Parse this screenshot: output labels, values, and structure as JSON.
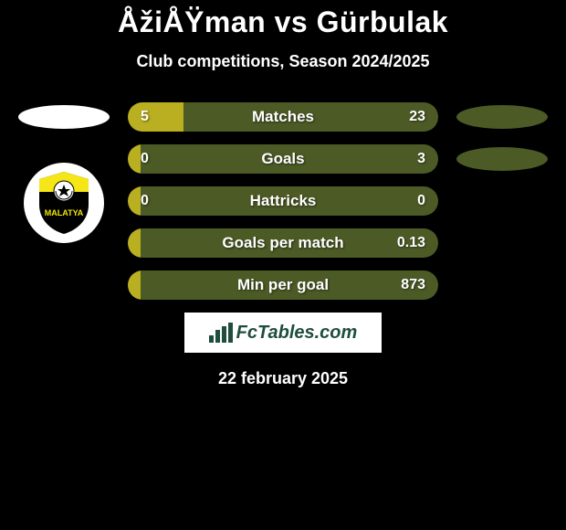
{
  "title": "ÅžiÅŸman vs Gürbulak",
  "subtitle": "Club competitions, Season 2024/2025",
  "date": "22 february 2025",
  "brand": "FcTables.com",
  "colors": {
    "background": "#000000",
    "bar_left": "#b9af21",
    "bar_right": "#4c5a25",
    "ellipse_left": "#ffffff",
    "ellipse_right": "#4c5a25",
    "text": "#ffffff",
    "brand_bg": "#ffffff",
    "brand_text": "#1f4e3d"
  },
  "left_ellipse_hidden_after": 0,
  "right_ellipse_hidden_after": 1,
  "rows": [
    {
      "label": "Matches",
      "left_val": "5",
      "right_val": "23",
      "left_pct": 18,
      "right_pct": 82
    },
    {
      "label": "Goals",
      "left_val": "0",
      "right_val": "3",
      "left_pct": 4,
      "right_pct": 96
    },
    {
      "label": "Hattricks",
      "left_val": "0",
      "right_val": "0",
      "left_pct": 4,
      "right_pct": 96
    },
    {
      "label": "Goals per match",
      "left_val": "",
      "right_val": "0.13",
      "left_pct": 4,
      "right_pct": 96
    },
    {
      "label": "Min per goal",
      "left_val": "",
      "right_val": "873",
      "left_pct": 4,
      "right_pct": 96
    }
  ],
  "badge": {
    "bg": "#ffffff",
    "shield_top": "#f4e617",
    "shield_bottom": "#000000",
    "ball": "#ffffff",
    "text": "MALATYA",
    "text_color": "#f2e500"
  }
}
